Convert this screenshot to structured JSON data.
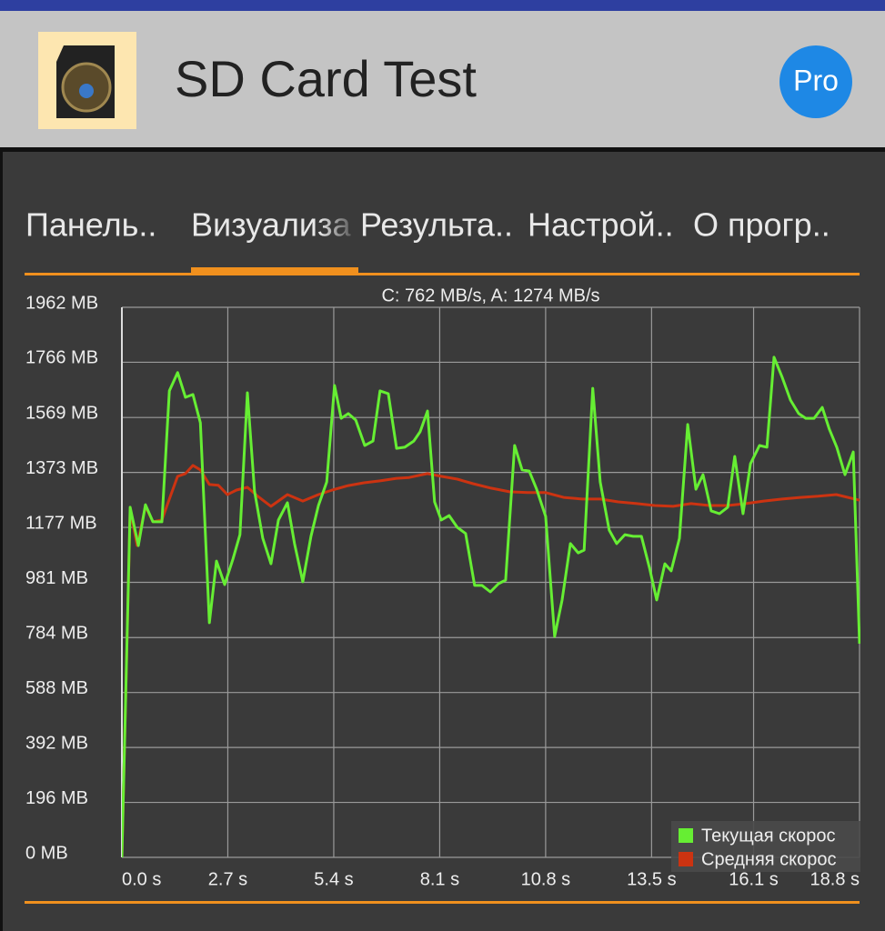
{
  "header": {
    "title": "SD Card Test",
    "badge": "Pro"
  },
  "tabs": [
    "Панель..",
    "Визуализа",
    "Результа..",
    "Настрой..",
    "О прогр.."
  ],
  "chart_data": {
    "type": "line",
    "subtitle": "C: 762 MB/s, A: 1274 MB/s",
    "xlim": [
      0,
      18.8
    ],
    "xticks": [
      {
        "value": 0,
        "label": "0.0 s"
      },
      {
        "value": 2.7,
        "label": "2.7 s"
      },
      {
        "value": 5.4,
        "label": "5.4 s"
      },
      {
        "value": 8.1,
        "label": "8.1 s"
      },
      {
        "value": 10.8,
        "label": "10.8 s"
      },
      {
        "value": 13.5,
        "label": "13.5 s"
      },
      {
        "value": 16.1,
        "label": "16.1 s"
      },
      {
        "value": 18.8,
        "label": "18.8 s"
      }
    ],
    "ylim": [
      0,
      1962
    ],
    "yticks": [
      {
        "value": 0,
        "label": "0 MB"
      },
      {
        "value": 196,
        "label": "196 MB"
      },
      {
        "value": 392,
        "label": "392 MB"
      },
      {
        "value": 588,
        "label": "588 MB"
      },
      {
        "value": 784,
        "label": "784 MB"
      },
      {
        "value": 981,
        "label": "981 MB"
      },
      {
        "value": 1177,
        "label": "1177 MB"
      },
      {
        "value": 1373,
        "label": "1373 MB"
      },
      {
        "value": 1569,
        "label": "1569 MB"
      },
      {
        "value": 1766,
        "label": "1766 MB"
      },
      {
        "value": 1962,
        "label": "1962 MB"
      }
    ],
    "grid": true,
    "legend": "lower right",
    "series": [
      {
        "name": "Текущая скорос",
        "color": "#66ee33",
        "x": [
          0,
          0.21,
          0.42,
          0.6,
          0.79,
          1.02,
          1.21,
          1.42,
          1.62,
          1.81,
          2.0,
          2.23,
          2.41,
          2.62,
          2.83,
          3.01,
          3.2,
          3.38,
          3.59,
          3.8,
          3.99,
          4.22,
          4.4,
          4.61,
          4.82,
          5.01,
          5.22,
          5.42,
          5.59,
          5.77,
          5.96,
          6.19,
          6.4,
          6.58,
          6.79,
          7.0,
          7.21,
          7.44,
          7.6,
          7.79,
          7.97,
          8.14,
          8.34,
          8.55,
          8.76,
          8.99,
          9.18,
          9.39,
          9.6,
          9.78,
          10.01,
          10.2,
          10.38,
          10.57,
          10.8,
          11.03,
          11.22,
          11.43,
          11.63,
          11.78,
          12.0,
          12.19,
          12.42,
          12.61,
          12.82,
          13.03,
          13.24,
          13.45,
          13.63,
          13.84,
          14.0,
          14.21,
          14.42,
          14.63,
          14.81,
          15.02,
          15.23,
          15.44,
          15.62,
          15.83,
          16.02,
          16.25,
          16.44,
          16.62,
          16.83,
          17.04,
          17.25,
          17.43,
          17.64,
          17.85,
          18.03,
          18.22,
          18.43,
          18.64,
          18.8
        ],
        "values": [
          0,
          1249,
          1112,
          1258,
          1197,
          1197,
          1664,
          1729,
          1641,
          1651,
          1550,
          837,
          1057,
          973,
          1064,
          1151,
          1657,
          1307,
          1138,
          1047,
          1203,
          1265,
          1119,
          983,
          1145,
          1255,
          1339,
          1683,
          1566,
          1583,
          1560,
          1469,
          1485,
          1664,
          1654,
          1459,
          1463,
          1485,
          1518,
          1592,
          1268,
          1203,
          1219,
          1177,
          1155,
          970,
          970,
          947,
          976,
          989,
          1469,
          1382,
          1378,
          1313,
          1216,
          788,
          918,
          1119,
          1086,
          1096,
          1673,
          1339,
          1167,
          1119,
          1151,
          1145,
          1145,
          1031,
          918,
          1047,
          1022,
          1138,
          1544,
          1313,
          1365,
          1236,
          1226,
          1249,
          1430,
          1226,
          1404,
          1469,
          1463,
          1784,
          1712,
          1631,
          1583,
          1566,
          1566,
          1605,
          1527,
          1463,
          1365,
          1446,
          762
        ]
      },
      {
        "name": "Средняя скорос",
        "color": "#cc3311",
        "x": [
          0,
          0.21,
          0.39,
          0.6,
          0.79,
          1.02,
          1.21,
          1.42,
          1.62,
          1.81,
          2.0,
          2.23,
          2.46,
          2.69,
          2.92,
          3.2,
          3.5,
          3.8,
          4.22,
          4.61,
          5.01,
          5.36,
          5.77,
          6.17,
          6.58,
          7.0,
          7.32,
          7.79,
          8.14,
          8.55,
          8.95,
          9.41,
          9.88,
          10.34,
          10.8,
          11.26,
          11.73,
          12.19,
          12.65,
          13.12,
          13.58,
          14.05,
          14.51,
          14.97,
          15.44,
          15.9,
          16.36,
          16.83,
          17.29,
          17.75,
          18.21,
          18.8
        ],
        "values": [
          0,
          1242,
          1112,
          1252,
          1197,
          1203,
          1278,
          1359,
          1369,
          1398,
          1382,
          1330,
          1327,
          1294,
          1310,
          1320,
          1284,
          1252,
          1294,
          1271,
          1294,
          1310,
          1326,
          1336,
          1343,
          1352,
          1355,
          1369,
          1359,
          1349,
          1333,
          1317,
          1304,
          1301,
          1301,
          1284,
          1278,
          1278,
          1268,
          1262,
          1255,
          1252,
          1262,
          1255,
          1255,
          1262,
          1271,
          1278,
          1284,
          1288,
          1294,
          1274
        ]
      }
    ]
  }
}
